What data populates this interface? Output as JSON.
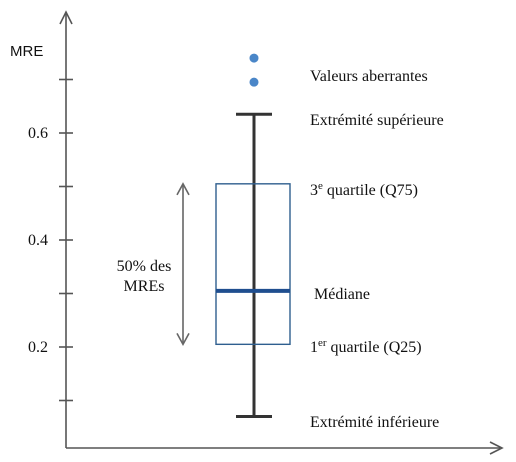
{
  "chart_data": {
    "type": "box",
    "ylabel": "MRE",
    "xlabel": "",
    "ylim": [
      0.0,
      0.8
    ],
    "yticks_labeled": [
      {
        "value": 0.2,
        "label": "0.2"
      },
      {
        "value": 0.4,
        "label": "0.4"
      },
      {
        "value": 0.6,
        "label": "0.6"
      }
    ],
    "yticks_unlabeled": [
      0.1,
      0.3,
      0.5,
      0.7
    ],
    "box": {
      "whisker_low": 0.07,
      "q1": 0.205,
      "median": 0.305,
      "q3": 0.505,
      "whisker_high": 0.635
    },
    "outliers": [
      0.695,
      0.74
    ],
    "annotations": {
      "outliers": "Valeurs aberrantes",
      "upper_whisker": "Extrémité supérieure",
      "q3_sup": "e",
      "q3_prefix": "3",
      "q3_rest": " quartile (Q75)",
      "median": "Médiane",
      "q1_prefix": "1",
      "q1_sup": "er",
      "q1_rest": " quartile (Q25)",
      "lower_whisker": "Extrémité inférieure",
      "iqr_line1": "50% des",
      "iqr_line2": "MREs"
    },
    "colors": {
      "axis": "#555555",
      "box_edge": "#2f5f8f",
      "median": "#1f4e8f",
      "whisker": "#333333",
      "outlier": "#4a86c8",
      "bracket": "#666666"
    }
  }
}
